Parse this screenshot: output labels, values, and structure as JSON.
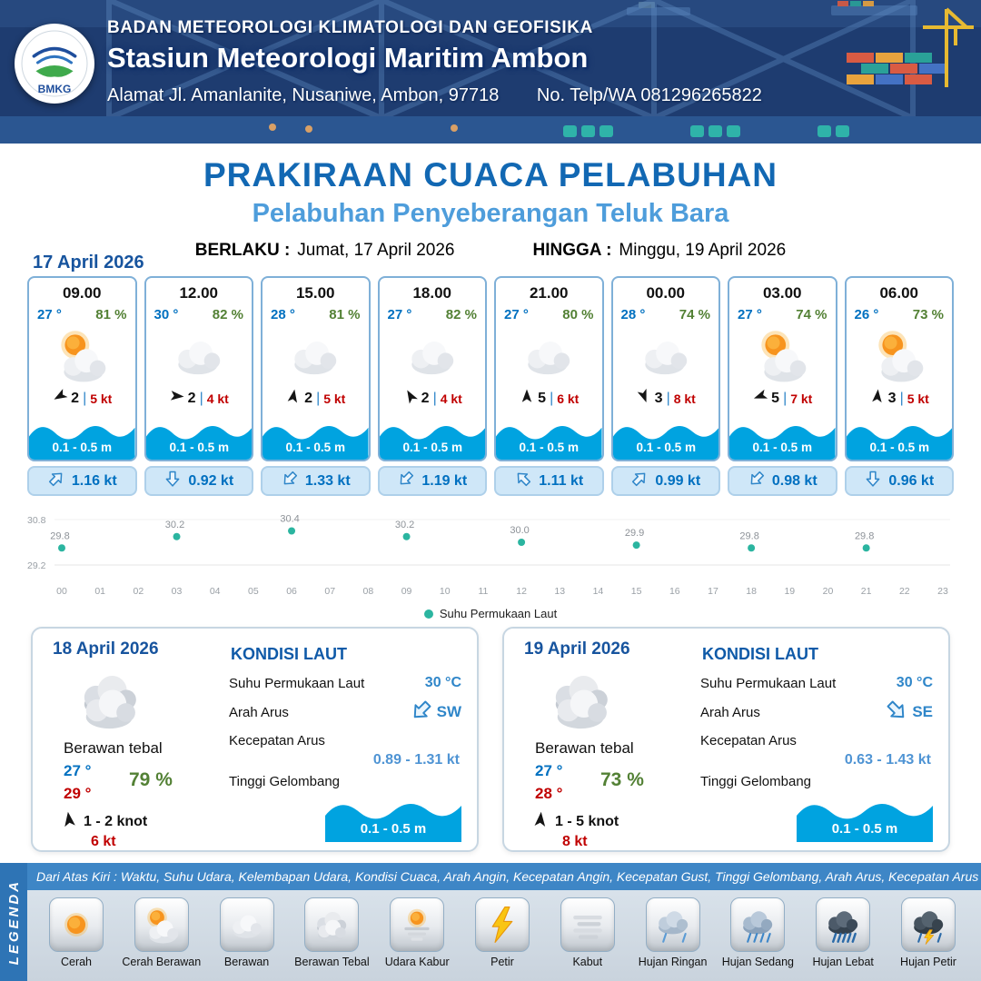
{
  "header": {
    "agency": "BADAN METEOROLOGI KLIMATOLOGI DAN GEOFISIKA",
    "station": "Stasiun Meteorologi Maritim Ambon",
    "address": "Alamat Jl. Amanlanite, Nusaniwe, Ambon, 97718",
    "contact": "No. Telp/WA  081296265822",
    "logo_label": "BMKG"
  },
  "title": {
    "main": "PRAKIRAAN CUACA PELABUHAN",
    "subtitle": "Pelabuhan Penyeberangan Teluk Bara",
    "valid_from_label": "BERLAKU :",
    "valid_from": "Jumat, 17 April 2026",
    "valid_to_label": "HINGGA :",
    "valid_to": "Minggu, 19 April 2026"
  },
  "forecast_date": "17 April 2026",
  "colors": {
    "header_navy": "#1e3c70",
    "title_blue": "#1268b3",
    "subtitle_blue": "#4e9ddb",
    "temp_blue": "#0070c0",
    "humidity_green": "#538135",
    "gust_red": "#c00000",
    "wave_blue": "#00a3e0",
    "current_blue": "#0070c0",
    "chart_dot_teal": "#2bb5a0",
    "legend_bar_blue": "#3e86c6"
  },
  "hourly": [
    {
      "time": "09.00",
      "temp": "27 °",
      "humidity": "81 %",
      "icon": "cerah-berawan",
      "wind_dir_deg": 240,
      "wind_speed": "2",
      "gust": "5 kt",
      "wave": "0.1 - 0.5 m",
      "current_dir_deg": 45,
      "current": "1.16 kt"
    },
    {
      "time": "12.00",
      "temp": "30 °",
      "humidity": "82 %",
      "icon": "berawan",
      "wind_dir_deg": 95,
      "wind_speed": "2",
      "gust": "4 kt",
      "wave": "0.1 - 0.5 m",
      "current_dir_deg": 180,
      "current": "0.92 kt"
    },
    {
      "time": "15.00",
      "temp": "28 °",
      "humidity": "81 %",
      "icon": "berawan",
      "wind_dir_deg": 10,
      "wind_speed": "2",
      "gust": "5 kt",
      "wave": "0.1 - 0.5 m",
      "current_dir_deg": 225,
      "current": "1.33 kt"
    },
    {
      "time": "18.00",
      "temp": "27 °",
      "humidity": "82 %",
      "icon": "berawan",
      "wind_dir_deg": 330,
      "wind_speed": "2",
      "gust": "4 kt",
      "wave": "0.1 - 0.5 m",
      "current_dir_deg": 225,
      "current": "1.19 kt"
    },
    {
      "time": "21.00",
      "temp": "27 °",
      "humidity": "80 %",
      "icon": "berawan",
      "wind_dir_deg": 0,
      "wind_speed": "5",
      "gust": "6 kt",
      "wave": "0.1 - 0.5 m",
      "current_dir_deg": 315,
      "current": "1.11 kt"
    },
    {
      "time": "00.00",
      "temp": "28 °",
      "humidity": "74 %",
      "icon": "berawan",
      "wind_dir_deg": 160,
      "wind_speed": "3",
      "gust": "8 kt",
      "wave": "0.1 - 0.5 m",
      "current_dir_deg": 45,
      "current": "0.99 kt"
    },
    {
      "time": "03.00",
      "temp": "27 °",
      "humidity": "74 %",
      "icon": "cerah-berawan",
      "wind_dir_deg": 250,
      "wind_speed": "5",
      "gust": "7 kt",
      "wave": "0.1 - 0.5 m",
      "current_dir_deg": 225,
      "current": "0.98 kt"
    },
    {
      "time": "06.00",
      "temp": "26 °",
      "humidity": "73 %",
      "icon": "cerah-berawan",
      "wind_dir_deg": 5,
      "wind_speed": "3",
      "gust": "5 kt",
      "wave": "0.1 - 0.5 m",
      "current_dir_deg": 180,
      "current": "0.96 kt"
    }
  ],
  "chart_data": {
    "type": "scatter",
    "legend": "Suhu Permukaan Laut",
    "x": [
      0,
      3,
      6,
      9,
      12,
      15,
      18,
      21
    ],
    "values": [
      29.8,
      30.2,
      30.4,
      30.2,
      30.0,
      29.9,
      29.8,
      29.8
    ],
    "xticks": [
      "00",
      "01",
      "02",
      "03",
      "04",
      "05",
      "06",
      "07",
      "08",
      "09",
      "10",
      "11",
      "12",
      "13",
      "14",
      "15",
      "16",
      "17",
      "18",
      "19",
      "20",
      "21",
      "22",
      "23"
    ],
    "ylim": [
      29.2,
      30.8
    ],
    "dot_color": "#2bb5a0",
    "grid": false,
    "legend_position": "bottom"
  },
  "daily": [
    {
      "date": "18 April 2026",
      "icon": "berawan-tebal",
      "condition": "Berawan tebal",
      "temp_min": "27 °",
      "temp_max": "29 °",
      "humidity": "79 %",
      "wind_dir_deg": 352,
      "wind_range": "1 - 2 knot",
      "gust": "6 kt",
      "sea": {
        "title": "KONDISI LAUT",
        "sst_label": "Suhu Permukaan Laut",
        "sst": "30 °C",
        "current_dir_label": "Arah Arus",
        "current_dir": "SW",
        "current_dir_deg": 225,
        "current_speed_label": "Kecepatan Arus",
        "current_speed": "0.89 - 1.31 kt",
        "wave_label": "Tinggi Gelombang",
        "wave": "0.1 - 0.5 m"
      }
    },
    {
      "date": "19 April 2026",
      "icon": "berawan-tebal",
      "condition": "Berawan tebal",
      "temp_min": "27 °",
      "temp_max": "28 °",
      "humidity": "73 %",
      "wind_dir_deg": 5,
      "wind_range": "1 - 5 knot",
      "gust": "8 kt",
      "sea": {
        "title": "KONDISI LAUT",
        "sst_label": "Suhu Permukaan Laut",
        "sst": "30 °C",
        "current_dir_label": "Arah Arus",
        "current_dir": "SE",
        "current_dir_deg": 135,
        "current_speed_label": "Kecepatan Arus",
        "current_speed": "0.63 - 1.43 kt",
        "wave_label": "Tinggi Gelombang",
        "wave": "0.1 - 0.5 m"
      }
    }
  ],
  "legend": {
    "title": "LEGENDA",
    "note": "Dari Atas Kiri : Waktu, Suhu Udara, Kelembapan Udara, Kondisi Cuaca, Arah Angin, Kecepatan Angin, Kecepatan Gust, Tinggi Gelombang, Arah Arus, Kecepatan Arus",
    "items": [
      {
        "icon": "cerah",
        "label": "Cerah"
      },
      {
        "icon": "cerah-berawan",
        "label": "Cerah Berawan"
      },
      {
        "icon": "berawan",
        "label": "Berawan"
      },
      {
        "icon": "berawan-tebal",
        "label": "Berawan Tebal"
      },
      {
        "icon": "udara-kabur",
        "label": "Udara Kabur"
      },
      {
        "icon": "petir",
        "label": "Petir"
      },
      {
        "icon": "kabut",
        "label": "Kabut"
      },
      {
        "icon": "hujan-ringan",
        "label": "Hujan Ringan"
      },
      {
        "icon": "hujan-sedang",
        "label": "Hujan Sedang"
      },
      {
        "icon": "hujan-lebat",
        "label": "Hujan Lebat"
      },
      {
        "icon": "hujan-petir",
        "label": "Hujan Petir"
      }
    ]
  }
}
